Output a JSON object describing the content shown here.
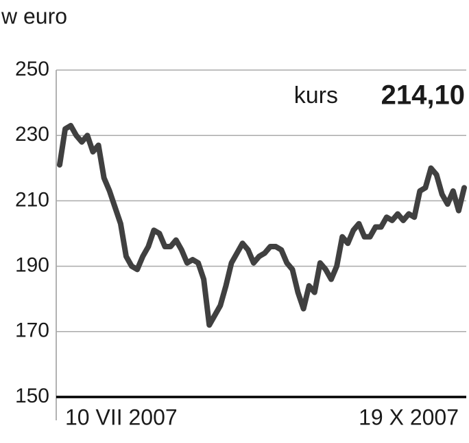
{
  "chart_data": {
    "type": "line",
    "y_label": "w euro",
    "annotation": {
      "label": "kurs",
      "value": "214,10"
    },
    "categories": [
      "10 VII 2007",
      null,
      null,
      null,
      null,
      null,
      null,
      null,
      null,
      null,
      null,
      null,
      null,
      null,
      null,
      null,
      null,
      null,
      null,
      null,
      null,
      null,
      null,
      null,
      null,
      null,
      null,
      null,
      null,
      null,
      null,
      null,
      null,
      null,
      null,
      null,
      null,
      null,
      null,
      null,
      null,
      null,
      null,
      null,
      null,
      null,
      null,
      null,
      null,
      null,
      null,
      null,
      null,
      null,
      null,
      null,
      null,
      null,
      null,
      null,
      null,
      null,
      null,
      null,
      null,
      null,
      null,
      null,
      null,
      null,
      null,
      null,
      null,
      "19 X 2007"
    ],
    "values": [
      221,
      232,
      233,
      230,
      228,
      230,
      225,
      227,
      217,
      213,
      208,
      203,
      193,
      190,
      189,
      193,
      196,
      201,
      200,
      196,
      196,
      198,
      195,
      191,
      192,
      191,
      186,
      172,
      175,
      178,
      184,
      191,
      194,
      197,
      195,
      191,
      193,
      194,
      196,
      196,
      195,
      191,
      189,
      182,
      177,
      184,
      182,
      191,
      189,
      186,
      190,
      199,
      197,
      201,
      203,
      199,
      199,
      202,
      202,
      205,
      204,
      206,
      204,
      206,
      205,
      213,
      214,
      220,
      218,
      212,
      209,
      213,
      207,
      214
    ],
    "color": "#404040",
    "ylim": [
      150,
      250
    ],
    "yticks": [
      150,
      170,
      190,
      210,
      230,
      250
    ],
    "grid": true
  }
}
